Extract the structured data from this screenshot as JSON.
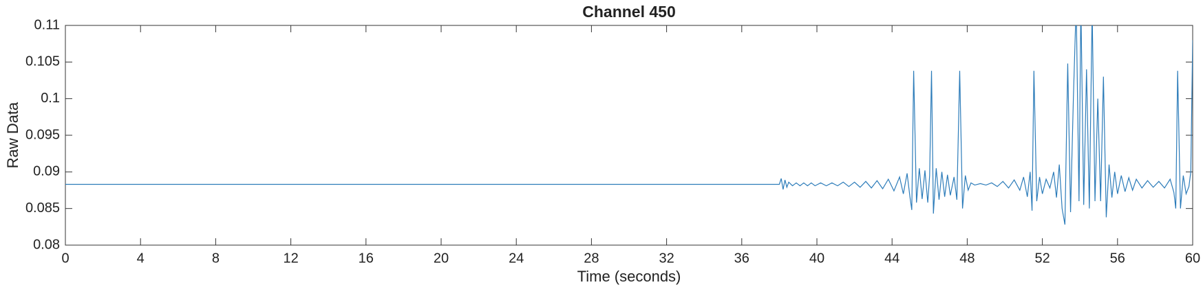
{
  "chart_data": {
    "type": "line",
    "title": "Channel 450",
    "xlabel": "Time (seconds)",
    "ylabel": "Raw Data",
    "x": [
      0,
      38,
      38.1,
      38.2,
      38.3,
      38.4,
      38.5,
      38.7,
      38.9,
      39.1,
      39.3,
      39.5,
      39.7,
      39.9,
      40.2,
      40.5,
      40.8,
      41.1,
      41.4,
      41.7,
      42,
      42.3,
      42.6,
      42.9,
      43.2,
      43.5,
      43.8,
      44.1,
      44.4,
      44.6,
      44.8,
      44.95,
      45.05,
      45.15,
      45.3,
      45.45,
      45.6,
      45.75,
      45.9,
      46.0,
      46.1,
      46.2,
      46.35,
      46.5,
      46.65,
      46.8,
      46.95,
      47.1,
      47.3,
      47.45,
      47.6,
      47.75,
      47.9,
      48.05,
      48.2,
      48.4,
      48.7,
      49.0,
      49.3,
      49.6,
      49.9,
      50.2,
      50.5,
      50.8,
      51.0,
      51.2,
      51.35,
      51.45,
      51.55,
      51.7,
      51.85,
      52.0,
      52.2,
      52.4,
      52.6,
      52.75,
      52.9,
      53.05,
      53.2,
      53.35,
      53.5,
      53.65,
      53.8,
      53.95,
      54.05,
      54.2,
      54.35,
      54.5,
      54.65,
      54.8,
      54.95,
      55.1,
      55.25,
      55.4,
      55.55,
      55.7,
      55.85,
      56.0,
      56.2,
      56.4,
      56.6,
      56.8,
      57.0,
      57.3,
      57.6,
      57.9,
      58.2,
      58.5,
      58.8,
      59.0,
      59.1,
      59.2,
      59.35,
      59.5,
      59.65,
      59.8,
      59.9,
      60
    ],
    "series": [
      {
        "color": "#2b7bb9",
        "values": [
          0.0883,
          0.0883,
          0.0891,
          0.0876,
          0.0889,
          0.0879,
          0.0886,
          0.0881,
          0.0885,
          0.0881,
          0.0885,
          0.0881,
          0.0885,
          0.0881,
          0.0885,
          0.0881,
          0.0885,
          0.0881,
          0.0886,
          0.088,
          0.0886,
          0.0879,
          0.0887,
          0.0878,
          0.0888,
          0.0877,
          0.089,
          0.0874,
          0.0893,
          0.087,
          0.0898,
          0.0866,
          0.0848,
          0.1038,
          0.0858,
          0.0905,
          0.0863,
          0.0902,
          0.0858,
          0.0895,
          0.1038,
          0.0843,
          0.0905,
          0.0862,
          0.09,
          0.0866,
          0.0896,
          0.0868,
          0.0893,
          0.0862,
          0.1038,
          0.085,
          0.0895,
          0.0875,
          0.0885,
          0.0882,
          0.0884,
          0.0882,
          0.0885,
          0.088,
          0.0887,
          0.0878,
          0.0889,
          0.0875,
          0.0893,
          0.0866,
          0.09,
          0.0847,
          0.1038,
          0.086,
          0.0893,
          0.087,
          0.089,
          0.0878,
          0.09,
          0.0865,
          0.091,
          0.085,
          0.0828,
          0.1048,
          0.0845,
          0.1,
          0.113,
          0.086,
          0.113,
          0.0855,
          0.104,
          0.085,
          0.112,
          0.086,
          0.1,
          0.086,
          0.103,
          0.0838,
          0.091,
          0.0865,
          0.09,
          0.087,
          0.0895,
          0.0873,
          0.0892,
          0.0875,
          0.089,
          0.0878,
          0.0888,
          0.0879,
          0.0887,
          0.0878,
          0.089,
          0.0872,
          0.085,
          0.1038,
          0.085,
          0.0895,
          0.087,
          0.088,
          0.09,
          0.108
        ]
      }
    ],
    "xlim": [
      0,
      60
    ],
    "xticks": [
      0,
      4,
      8,
      12,
      16,
      20,
      24,
      28,
      32,
      36,
      40,
      44,
      48,
      52,
      56,
      60
    ],
    "ylim": [
      0.08,
      0.11
    ],
    "yticks": [
      0.08,
      0.085,
      0.09,
      0.095,
      0.1,
      0.105,
      0.11
    ]
  }
}
